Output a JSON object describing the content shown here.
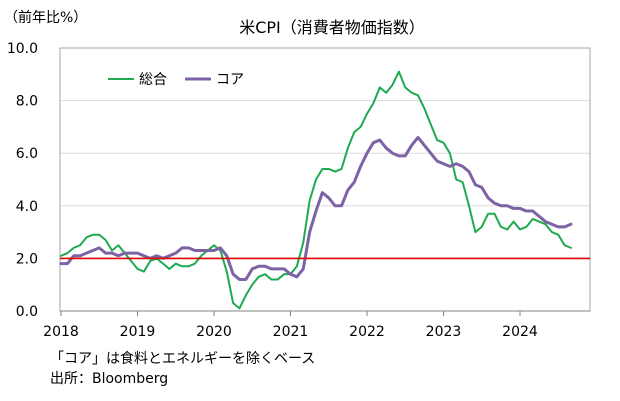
{
  "chart_data": {
    "type": "line",
    "title": "米CPI（消費者物価指数）",
    "ylabel": "（前年比%）",
    "ylim": [
      0,
      10
    ],
    "yticks": [
      "0.0",
      "2.0",
      "4.0",
      "6.0",
      "8.0",
      "10.0"
    ],
    "xticks": [
      "2018",
      "2019",
      "2020",
      "2021",
      "2022",
      "2023",
      "2024"
    ],
    "x": [
      "2018-01",
      "2018-02",
      "2018-03",
      "2018-04",
      "2018-05",
      "2018-06",
      "2018-07",
      "2018-08",
      "2018-09",
      "2018-10",
      "2018-11",
      "2018-12",
      "2019-01",
      "2019-02",
      "2019-03",
      "2019-04",
      "2019-05",
      "2019-06",
      "2019-07",
      "2019-08",
      "2019-09",
      "2019-10",
      "2019-11",
      "2019-12",
      "2020-01",
      "2020-02",
      "2020-03",
      "2020-04",
      "2020-05",
      "2020-06",
      "2020-07",
      "2020-08",
      "2020-09",
      "2020-10",
      "2020-11",
      "2020-12",
      "2021-01",
      "2021-02",
      "2021-03",
      "2021-04",
      "2021-05",
      "2021-06",
      "2021-07",
      "2021-08",
      "2021-09",
      "2021-10",
      "2021-11",
      "2021-12",
      "2022-01",
      "2022-02",
      "2022-03",
      "2022-04",
      "2022-05",
      "2022-06",
      "2022-07",
      "2022-08",
      "2022-09",
      "2022-10",
      "2022-11",
      "2022-12",
      "2023-01",
      "2023-02",
      "2023-03",
      "2023-04",
      "2023-05",
      "2023-06",
      "2023-07",
      "2023-08",
      "2023-09",
      "2023-10",
      "2023-11",
      "2023-12",
      "2024-01",
      "2024-02",
      "2024-03",
      "2024-04",
      "2024-05",
      "2024-06",
      "2024-07",
      "2024-08",
      "2024-09"
    ],
    "series": [
      {
        "name": "総合",
        "color": "#1faa50",
        "values": [
          2.1,
          2.2,
          2.4,
          2.5,
          2.8,
          2.9,
          2.9,
          2.7,
          2.3,
          2.5,
          2.2,
          1.9,
          1.6,
          1.5,
          1.9,
          2.0,
          1.8,
          1.6,
          1.8,
          1.7,
          1.7,
          1.8,
          2.1,
          2.3,
          2.5,
          2.3,
          1.5,
          0.3,
          0.1,
          0.6,
          1.0,
          1.3,
          1.4,
          1.2,
          1.2,
          1.4,
          1.4,
          1.7,
          2.6,
          4.2,
          5.0,
          5.4,
          5.4,
          5.3,
          5.4,
          6.2,
          6.8,
          7.0,
          7.5,
          7.9,
          8.5,
          8.3,
          8.6,
          9.1,
          8.5,
          8.3,
          8.2,
          7.7,
          7.1,
          6.5,
          6.4,
          6.0,
          5.0,
          4.9,
          4.0,
          3.0,
          3.2,
          3.7,
          3.7,
          3.2,
          3.1,
          3.4,
          3.1,
          3.2,
          3.5,
          3.4,
          3.3,
          3.0,
          2.9,
          2.5,
          2.4
        ]
      },
      {
        "name": "コア",
        "color": "#7d62a5",
        "values": [
          1.8,
          1.8,
          2.1,
          2.1,
          2.2,
          2.3,
          2.4,
          2.2,
          2.2,
          2.1,
          2.2,
          2.2,
          2.2,
          2.1,
          2.0,
          2.1,
          2.0,
          2.1,
          2.2,
          2.4,
          2.4,
          2.3,
          2.3,
          2.3,
          2.3,
          2.4,
          2.1,
          1.4,
          1.2,
          1.2,
          1.6,
          1.7,
          1.7,
          1.6,
          1.6,
          1.6,
          1.4,
          1.3,
          1.6,
          3.0,
          3.8,
          4.5,
          4.3,
          4.0,
          4.0,
          4.6,
          4.9,
          5.5,
          6.0,
          6.4,
          6.5,
          6.2,
          6.0,
          5.9,
          5.9,
          6.3,
          6.6,
          6.3,
          6.0,
          5.7,
          5.6,
          5.5,
          5.6,
          5.5,
          5.3,
          4.8,
          4.7,
          4.3,
          4.1,
          4.0,
          4.0,
          3.9,
          3.9,
          3.8,
          3.8,
          3.6,
          3.4,
          3.3,
          3.2,
          3.2,
          3.3
        ]
      }
    ],
    "reference_line": {
      "y": 2.0,
      "color": "#e00000"
    },
    "grid": true,
    "legend": "top-left"
  },
  "notes": [
    "「コア」は食料とエネルギーを除くベース",
    "出所：Bloomberg"
  ]
}
